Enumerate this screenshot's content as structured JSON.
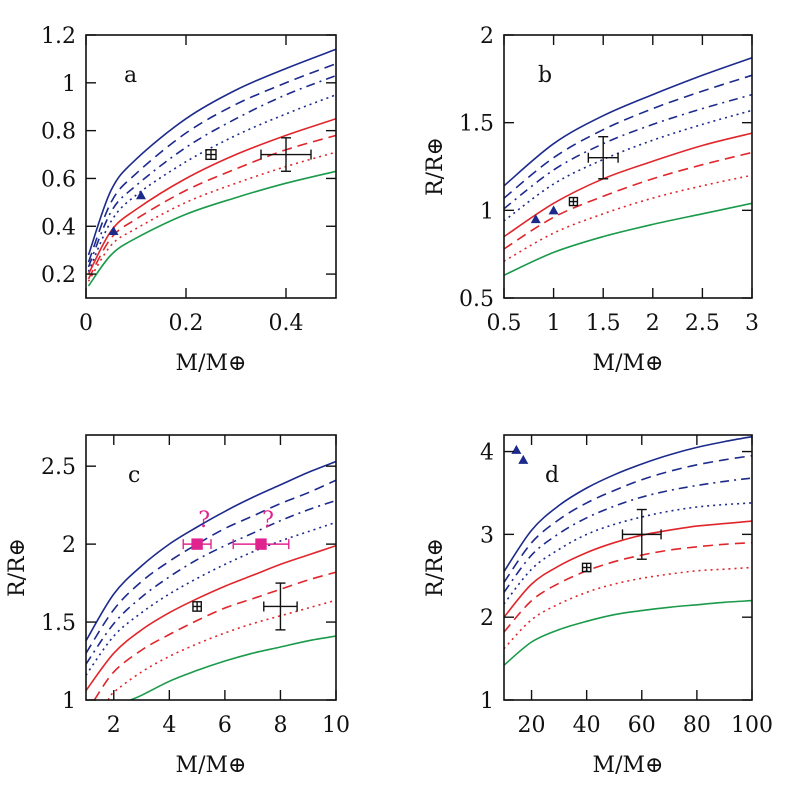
{
  "colors": {
    "blue": "#1c2a8c",
    "red": "#e0262b",
    "green": "#1a9a4a",
    "magenta": "#e0248f",
    "black": "#111111"
  },
  "chart_data": [
    {
      "type": "line",
      "panel": "a",
      "xlabel": "M/M⊕",
      "ylabel": "",
      "xlim": [
        0,
        0.5
      ],
      "ylim": [
        0.1,
        1.2
      ],
      "xticks": [
        0,
        0.2,
        0.4
      ],
      "xticklabels": [
        "0",
        "0.2",
        "0.4"
      ],
      "yticks": [
        0.2,
        0.4,
        0.6,
        0.8,
        1,
        1.2
      ],
      "yticklabels": [
        "0.2",
        "0.4",
        "0.6",
        "0.8",
        "1",
        "1.2"
      ],
      "curves": [
        {
          "color": "blue",
          "dash": "solid",
          "x": [
            0.005,
            0.05,
            0.1,
            0.2,
            0.3,
            0.4,
            0.5
          ],
          "y": [
            0.28,
            0.55,
            0.68,
            0.85,
            0.97,
            1.06,
            1.14
          ]
        },
        {
          "color": "blue",
          "dash": "dashed",
          "x": [
            0.005,
            0.05,
            0.1,
            0.2,
            0.3,
            0.4,
            0.5
          ],
          "y": [
            0.25,
            0.5,
            0.62,
            0.79,
            0.91,
            1.0,
            1.08
          ]
        },
        {
          "color": "blue",
          "dash": "dashdot",
          "x": [
            0.005,
            0.05,
            0.1,
            0.2,
            0.3,
            0.4,
            0.5
          ],
          "y": [
            0.23,
            0.46,
            0.57,
            0.73,
            0.85,
            0.95,
            1.03
          ]
        },
        {
          "color": "blue",
          "dash": "dotted",
          "x": [
            0.005,
            0.05,
            0.1,
            0.2,
            0.3,
            0.4,
            0.5
          ],
          "y": [
            0.21,
            0.42,
            0.53,
            0.67,
            0.78,
            0.87,
            0.95
          ]
        },
        {
          "color": "red",
          "dash": "solid",
          "x": [
            0.005,
            0.05,
            0.1,
            0.2,
            0.3,
            0.4,
            0.5
          ],
          "y": [
            0.2,
            0.38,
            0.47,
            0.6,
            0.7,
            0.78,
            0.85
          ]
        },
        {
          "color": "red",
          "dash": "dashed",
          "x": [
            0.005,
            0.05,
            0.1,
            0.2,
            0.3,
            0.4,
            0.5
          ],
          "y": [
            0.18,
            0.35,
            0.43,
            0.55,
            0.64,
            0.72,
            0.78
          ]
        },
        {
          "color": "red",
          "dash": "dotted",
          "x": [
            0.005,
            0.05,
            0.1,
            0.2,
            0.3,
            0.4,
            0.5
          ],
          "y": [
            0.17,
            0.32,
            0.39,
            0.5,
            0.58,
            0.65,
            0.71
          ]
        },
        {
          "color": "green",
          "dash": "solid",
          "x": [
            0.005,
            0.05,
            0.1,
            0.2,
            0.3,
            0.4,
            0.5
          ],
          "y": [
            0.15,
            0.28,
            0.35,
            0.45,
            0.52,
            0.58,
            0.63
          ]
        }
      ],
      "triangles": [
        {
          "x": 0.055,
          "y": 0.38
        },
        {
          "x": 0.11,
          "y": 0.53
        }
      ],
      "errorpoints": [
        {
          "x": 0.25,
          "y": 0.7,
          "xerr": 0.01,
          "yerr": 0.02,
          "style": "small-box"
        },
        {
          "x": 0.4,
          "y": 0.7,
          "xerr": 0.05,
          "yerr": 0.07,
          "style": "cross"
        }
      ],
      "question_points": []
    },
    {
      "type": "line",
      "panel": "b",
      "xlabel": "M/M⊕",
      "ylabel": "R/R⊕",
      "xlim": [
        0.5,
        3
      ],
      "ylim": [
        0.5,
        2
      ],
      "xticks": [
        0.5,
        1,
        1.5,
        2,
        2.5,
        3
      ],
      "xticklabels": [
        "0.5",
        "1",
        "1.5",
        "2",
        "2.5",
        "3"
      ],
      "yticks": [
        0.5,
        1,
        1.5,
        2
      ],
      "yticklabels": [
        "0.5",
        "1",
        "1.5",
        "2"
      ],
      "curves": [
        {
          "color": "blue",
          "dash": "solid",
          "x": [
            0.5,
            1,
            1.5,
            2,
            2.5,
            3
          ],
          "y": [
            1.14,
            1.38,
            1.54,
            1.66,
            1.77,
            1.87
          ]
        },
        {
          "color": "blue",
          "dash": "dashed",
          "x": [
            0.5,
            1,
            1.5,
            2,
            2.5,
            3
          ],
          "y": [
            1.07,
            1.3,
            1.46,
            1.58,
            1.68,
            1.77
          ]
        },
        {
          "color": "blue",
          "dash": "dashdot",
          "x": [
            0.5,
            1,
            1.5,
            2,
            2.5,
            3
          ],
          "y": [
            1.01,
            1.23,
            1.38,
            1.49,
            1.58,
            1.66
          ]
        },
        {
          "color": "blue",
          "dash": "dotted",
          "x": [
            0.5,
            1,
            1.5,
            2,
            2.5,
            3
          ],
          "y": [
            0.94,
            1.15,
            1.29,
            1.4,
            1.49,
            1.57
          ]
        },
        {
          "color": "red",
          "dash": "solid",
          "x": [
            0.5,
            1,
            1.5,
            2,
            2.5,
            3
          ],
          "y": [
            0.85,
            1.04,
            1.18,
            1.28,
            1.37,
            1.44
          ]
        },
        {
          "color": "red",
          "dash": "dashed",
          "x": [
            0.5,
            1,
            1.5,
            2,
            2.5,
            3
          ],
          "y": [
            0.78,
            0.96,
            1.08,
            1.18,
            1.26,
            1.33
          ]
        },
        {
          "color": "red",
          "dash": "dotted",
          "x": [
            0.5,
            1,
            1.5,
            2,
            2.5,
            3
          ],
          "y": [
            0.71,
            0.87,
            0.98,
            1.07,
            1.14,
            1.2
          ]
        },
        {
          "color": "green",
          "dash": "solid",
          "x": [
            0.5,
            1,
            1.5,
            2,
            2.5,
            3
          ],
          "y": [
            0.63,
            0.76,
            0.85,
            0.92,
            0.98,
            1.04
          ]
        }
      ],
      "triangles": [
        {
          "x": 0.82,
          "y": 0.95
        },
        {
          "x": 1.0,
          "y": 1.0
        }
      ],
      "errorpoints": [
        {
          "x": 1.2,
          "y": 1.05,
          "xerr": 0.04,
          "yerr": 0.02,
          "style": "small-box"
        },
        {
          "x": 1.5,
          "y": 1.3,
          "xerr": 0.15,
          "yerr": 0.12,
          "style": "cross"
        }
      ],
      "question_points": []
    },
    {
      "type": "line",
      "panel": "c",
      "xlabel": "M/M⊕",
      "ylabel": "R/R⊕",
      "xlim": [
        1,
        10
      ],
      "ylim": [
        1,
        2.7
      ],
      "xticks": [
        2,
        4,
        6,
        8,
        10
      ],
      "xticklabels": [
        "2",
        "4",
        "6",
        "8",
        "10"
      ],
      "yticks": [
        1,
        1.5,
        2,
        2.5
      ],
      "yticklabels": [
        "1",
        "1.5",
        "2",
        "2.5"
      ],
      "curves": [
        {
          "color": "blue",
          "dash": "solid",
          "x": [
            1,
            2,
            3,
            4,
            5,
            6,
            7,
            8,
            9,
            10
          ],
          "y": [
            1.38,
            1.68,
            1.86,
            2.0,
            2.11,
            2.21,
            2.3,
            2.38,
            2.46,
            2.53
          ]
        },
        {
          "color": "blue",
          "dash": "dashed",
          "x": [
            1,
            2,
            3,
            4,
            5,
            6,
            7,
            8,
            9,
            10
          ],
          "y": [
            1.3,
            1.58,
            1.76,
            1.89,
            2.0,
            2.1,
            2.18,
            2.26,
            2.33,
            2.41
          ]
        },
        {
          "color": "blue",
          "dash": "dashdot",
          "x": [
            1,
            2,
            3,
            4,
            5,
            6,
            7,
            8,
            9,
            10
          ],
          "y": [
            1.23,
            1.49,
            1.66,
            1.79,
            1.9,
            1.99,
            2.07,
            2.15,
            2.22,
            2.28
          ]
        },
        {
          "color": "blue",
          "dash": "dotted",
          "x": [
            1,
            2,
            3,
            4,
            5,
            6,
            7,
            8,
            9,
            10
          ],
          "y": [
            1.16,
            1.41,
            1.56,
            1.68,
            1.78,
            1.87,
            1.95,
            2.02,
            2.08,
            2.14
          ]
        },
        {
          "color": "red",
          "dash": "solid",
          "x": [
            1,
            2,
            3,
            4,
            5,
            6,
            7,
            8,
            9,
            10
          ],
          "y": [
            1.06,
            1.3,
            1.45,
            1.56,
            1.65,
            1.73,
            1.8,
            1.87,
            1.93,
            1.99
          ]
        },
        {
          "color": "red",
          "dash": "dashed",
          "x": [
            1.3,
            2,
            3,
            4,
            5,
            6,
            7,
            8,
            9,
            10
          ],
          "y": [
            1.0,
            1.18,
            1.32,
            1.42,
            1.51,
            1.59,
            1.65,
            1.71,
            1.77,
            1.82
          ]
        },
        {
          "color": "red",
          "dash": "dotted",
          "x": [
            1.8,
            2,
            3,
            4,
            5,
            6,
            7,
            8,
            9,
            10
          ],
          "y": [
            1.0,
            1.05,
            1.18,
            1.28,
            1.36,
            1.43,
            1.49,
            1.54,
            1.59,
            1.64
          ]
        },
        {
          "color": "green",
          "dash": "solid",
          "x": [
            2.6,
            3,
            4,
            5,
            6,
            7,
            8,
            9,
            10
          ],
          "y": [
            1.0,
            1.03,
            1.12,
            1.19,
            1.25,
            1.3,
            1.34,
            1.38,
            1.41
          ]
        }
      ],
      "triangles": [],
      "errorpoints": [
        {
          "x": 5.0,
          "y": 1.6,
          "xerr": 0.15,
          "yerr": 0.03,
          "style": "small-box"
        },
        {
          "x": 8.0,
          "y": 1.6,
          "xerr": 0.6,
          "yerr": 0.15,
          "style": "cross"
        }
      ],
      "question_points": [
        {
          "x": 5.0,
          "y": 2.0,
          "xerr": 0.5,
          "label": "?"
        },
        {
          "x": 7.3,
          "y": 2.0,
          "xerr": 1.0,
          "label": "?"
        }
      ]
    },
    {
      "type": "line",
      "panel": "d",
      "xlabel": "M/M⊕",
      "ylabel": "R/R⊕",
      "xlim": [
        10,
        100
      ],
      "ylim": [
        1,
        4.2
      ],
      "xticks": [
        20,
        40,
        60,
        80,
        100
      ],
      "xticklabels": [
        "20",
        "40",
        "60",
        "80",
        "100"
      ],
      "yticks": [
        1,
        2,
        3,
        4
      ],
      "yticklabels": [
        "1",
        "2",
        "3",
        "4"
      ],
      "curves": [
        {
          "color": "blue",
          "dash": "solid",
          "x": [
            10,
            20,
            30,
            40,
            50,
            60,
            70,
            80,
            90,
            100
          ],
          "y": [
            2.55,
            3.05,
            3.35,
            3.56,
            3.72,
            3.85,
            3.96,
            4.05,
            4.12,
            4.18
          ]
        },
        {
          "color": "blue",
          "dash": "dashed",
          "x": [
            10,
            20,
            30,
            40,
            50,
            60,
            70,
            80,
            90,
            100
          ],
          "y": [
            2.42,
            2.9,
            3.18,
            3.38,
            3.53,
            3.66,
            3.76,
            3.84,
            3.9,
            3.95
          ]
        },
        {
          "color": "blue",
          "dash": "dashdot",
          "x": [
            10,
            20,
            30,
            40,
            50,
            60,
            70,
            80,
            90,
            100
          ],
          "y": [
            2.3,
            2.75,
            3.01,
            3.2,
            3.34,
            3.45,
            3.53,
            3.59,
            3.64,
            3.68
          ]
        },
        {
          "color": "blue",
          "dash": "dotted",
          "x": [
            10,
            20,
            30,
            40,
            50,
            60,
            70,
            80,
            90,
            100
          ],
          "y": [
            2.16,
            2.58,
            2.82,
            3.0,
            3.12,
            3.21,
            3.28,
            3.33,
            3.36,
            3.38
          ]
        },
        {
          "color": "red",
          "dash": "solid",
          "x": [
            10,
            20,
            30,
            40,
            50,
            60,
            70,
            80,
            90,
            100
          ],
          "y": [
            2.0,
            2.4,
            2.62,
            2.78,
            2.9,
            2.99,
            3.05,
            3.1,
            3.13,
            3.16
          ]
        },
        {
          "color": "red",
          "dash": "dashed",
          "x": [
            10,
            20,
            30,
            40,
            50,
            60,
            70,
            80,
            90,
            100
          ],
          "y": [
            1.82,
            2.2,
            2.41,
            2.56,
            2.67,
            2.75,
            2.81,
            2.85,
            2.88,
            2.9
          ]
        },
        {
          "color": "red",
          "dash": "dotted",
          "x": [
            10,
            20,
            30,
            40,
            50,
            60,
            70,
            80,
            90,
            100
          ],
          "y": [
            1.62,
            1.97,
            2.16,
            2.3,
            2.4,
            2.47,
            2.52,
            2.56,
            2.58,
            2.6
          ]
        },
        {
          "color": "green",
          "dash": "solid",
          "x": [
            10,
            20,
            30,
            40,
            50,
            60,
            70,
            80,
            90,
            100
          ],
          "y": [
            1.42,
            1.7,
            1.85,
            1.95,
            2.03,
            2.08,
            2.12,
            2.15,
            2.18,
            2.2
          ]
        }
      ],
      "triangles": [
        {
          "x": 14.5,
          "y": 4.02
        },
        {
          "x": 17.0,
          "y": 3.9
        }
      ],
      "errorpoints": [
        {
          "x": 40,
          "y": 2.6,
          "xerr": 1.5,
          "yerr": 0.05,
          "style": "small-box"
        },
        {
          "x": 60,
          "y": 3.0,
          "xerr": 7,
          "yerr": 0.3,
          "style": "cross"
        }
      ],
      "question_points": []
    }
  ]
}
